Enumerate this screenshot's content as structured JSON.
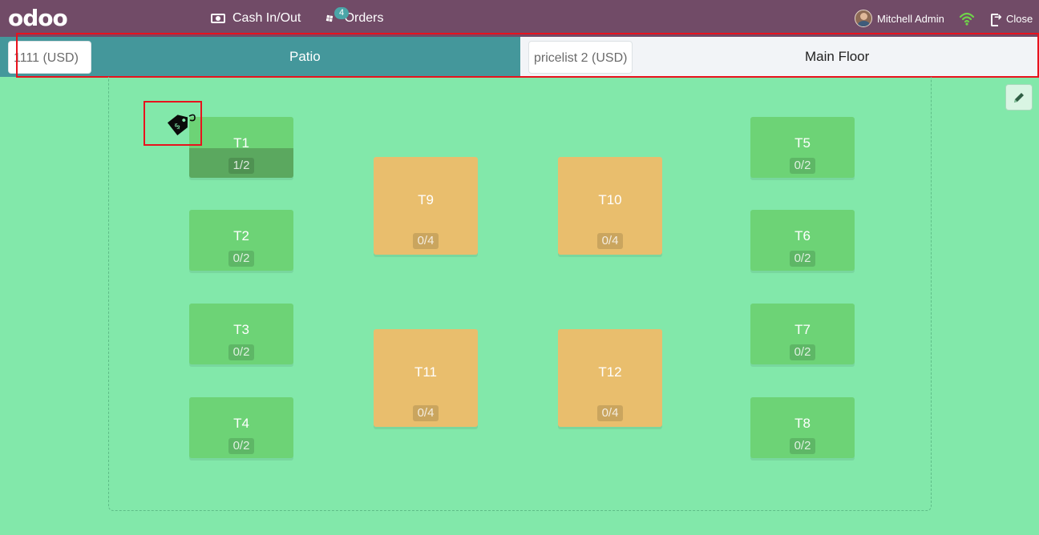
{
  "navbar": {
    "logo": "odoo",
    "cash_label": "Cash In/Out",
    "orders_label": "Orders",
    "orders_count": "4",
    "user_name": "Mitchell Admin",
    "close_label": "Close"
  },
  "floors": [
    {
      "name": "Patio",
      "pricelist": "1111 (USD)",
      "active": true
    },
    {
      "name": "Main Floor",
      "pricelist": "pricelist 2 (USD)",
      "active": false
    }
  ],
  "tables": [
    {
      "name": "T1",
      "seats": "1/2",
      "shape": "square",
      "occupied": true
    },
    {
      "name": "T2",
      "seats": "0/2",
      "shape": "square"
    },
    {
      "name": "T3",
      "seats": "0/2",
      "shape": "square"
    },
    {
      "name": "T4",
      "seats": "0/2",
      "shape": "square"
    },
    {
      "name": "T5",
      "seats": "0/2",
      "shape": "square"
    },
    {
      "name": "T6",
      "seats": "0/2",
      "shape": "square"
    },
    {
      "name": "T7",
      "seats": "0/2",
      "shape": "square"
    },
    {
      "name": "T8",
      "seats": "0/2",
      "shape": "square"
    },
    {
      "name": "T9",
      "seats": "0/4",
      "shape": "large"
    },
    {
      "name": "T10",
      "seats": "0/4",
      "shape": "large"
    },
    {
      "name": "T11",
      "seats": "0/4",
      "shape": "large"
    },
    {
      "name": "T12",
      "seats": "0/4",
      "shape": "large"
    }
  ],
  "colors": {
    "navbar": "#714b67",
    "active_floor_tab": "#44979b",
    "floor_background": "#82e8aa",
    "square_table": "#6dd376",
    "large_table": "#e9be6d",
    "highlight": "#e8121d"
  },
  "icons": {
    "cash": "money-icon",
    "orders": "ticket-icon",
    "wifi": "wifi-icon",
    "close": "sign-out-icon",
    "edit": "pencil-icon",
    "price_tag": "price-tag-icon"
  }
}
